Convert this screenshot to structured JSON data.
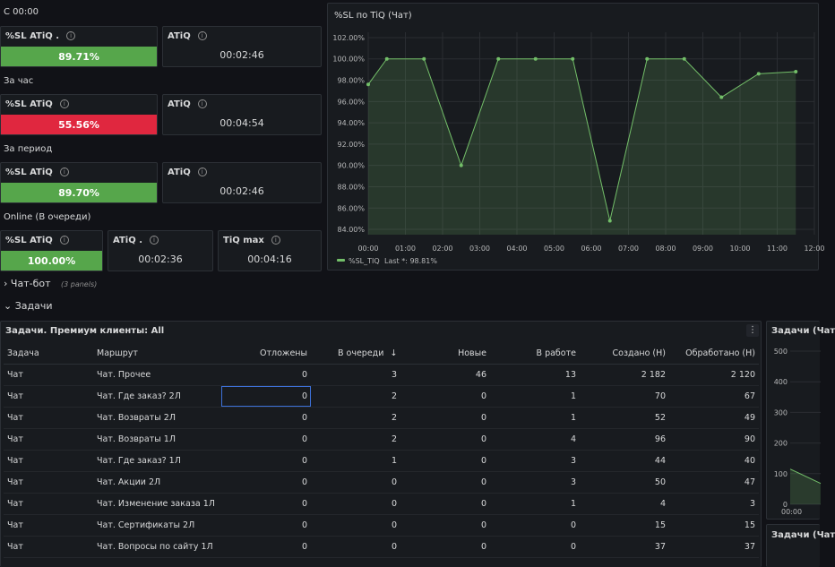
{
  "sections": {
    "since": "С 00:00",
    "hour": "За час",
    "period": "За период",
    "online": "Online (В очереди)"
  },
  "stats": {
    "since_sl_title": "%SL ATiQ .",
    "since_sl_value": "89.71%",
    "since_atiq_title": "ATiQ",
    "since_atiq_value": "00:02:46",
    "hour_sl_title": "%SL ATiQ",
    "hour_sl_value": "55.56%",
    "hour_atiq_title": "ATiQ",
    "hour_atiq_value": "00:04:54",
    "period_sl_title": "%SL ATiQ",
    "period_sl_value": "89.70%",
    "period_atiq_title": "ATiQ",
    "period_atiq_value": "00:02:46",
    "online_sl_title": "%SL ATiQ",
    "online_sl_value": "100.00%",
    "online_atiq_title": "ATiQ .",
    "online_atiq_value": "00:02:36",
    "online_tiq_title": "TiQ max",
    "online_tiq_value": "00:04:16",
    "colors": {
      "green": "#56a64b",
      "red": "#e0273f"
    }
  },
  "rows": {
    "chatbot_title": "Чат-бот",
    "chatbot_count": "(3 panels)",
    "tasks_title": "Задачи"
  },
  "chart_data": {
    "type": "area",
    "title": "%SL по TiQ (Чат)",
    "x": [
      "00:00",
      "01:00",
      "02:00",
      "03:00",
      "04:00",
      "05:00",
      "06:00",
      "07:00",
      "08:00",
      "09:00",
      "10:00",
      "11:00",
      "12:00"
    ],
    "points": [
      {
        "x": "00:00",
        "y": 97.6
      },
      {
        "x": "00:30",
        "y": 100.0
      },
      {
        "x": "01:30",
        "y": 100.0
      },
      {
        "x": "02:30",
        "y": 90.0
      },
      {
        "x": "03:30",
        "y": 100.0
      },
      {
        "x": "04:30",
        "y": 100.0
      },
      {
        "x": "05:30",
        "y": 100.0
      },
      {
        "x": "06:30",
        "y": 84.8
      },
      {
        "x": "07:30",
        "y": 100.0
      },
      {
        "x": "08:30",
        "y": 100.0
      },
      {
        "x": "09:30",
        "y": 96.4
      },
      {
        "x": "10:30",
        "y": 98.6
      },
      {
        "x": "11:30",
        "y": 98.8
      }
    ],
    "yticks": [
      "84.00%",
      "86.00%",
      "88.00%",
      "90.00%",
      "92.00%",
      "94.00%",
      "96.00%",
      "98.00%",
      "100.00%",
      "102.00%"
    ],
    "ylim": [
      83.5,
      102.5
    ],
    "legend": [
      {
        "name": "%SL_TIQ",
        "stat": "Last *: 98.81%"
      }
    ],
    "grid": true,
    "legend_position": "bottom-left",
    "color": "#73bf69"
  },
  "table": {
    "title": "Задачи. Премиум клиенты: All",
    "menu_glyph": "⋮",
    "sort_glyph": "↓",
    "columns": [
      "Задача",
      "Маршрут",
      "Отложены",
      "В очереди",
      "Новые",
      "В работе",
      "Создано (Н)",
      "Обработано (Н)"
    ],
    "rows": [
      [
        "Чат",
        "Чат. Прочее",
        "0",
        "3",
        "46",
        "13",
        "2 182",
        "2 120"
      ],
      [
        "Чат",
        "Чат. Где заказ? 2Л",
        "0",
        "2",
        "0",
        "1",
        "70",
        "67"
      ],
      [
        "Чат",
        "Чат. Возвраты 2Л",
        "0",
        "2",
        "0",
        "1",
        "52",
        "49"
      ],
      [
        "Чат",
        "Чат. Возвраты 1Л",
        "0",
        "2",
        "0",
        "4",
        "96",
        "90"
      ],
      [
        "Чат",
        "Чат. Где заказ? 1Л",
        "0",
        "1",
        "0",
        "3",
        "44",
        "40"
      ],
      [
        "Чат",
        "Чат. Акции 2Л",
        "0",
        "0",
        "0",
        "3",
        "50",
        "47"
      ],
      [
        "Чат",
        "Чат. Изменение заказа 1Л",
        "0",
        "0",
        "0",
        "1",
        "4",
        "3"
      ],
      [
        "Чат",
        "Чат. Сертификаты 2Л",
        "0",
        "0",
        "0",
        "0",
        "15",
        "15"
      ],
      [
        "Чат",
        "Чат. Вопросы по сайту 1Л",
        "0",
        "0",
        "0",
        "0",
        "37",
        "37"
      ]
    ]
  },
  "right_panel": {
    "title": "Задачи (Чат",
    "yticks": [
      "500",
      "400",
      "300",
      "200",
      "100",
      "0"
    ],
    "xtick": "00:00",
    "first_value": 115,
    "ymax": 500,
    "title2": "Задачи (Чат"
  }
}
